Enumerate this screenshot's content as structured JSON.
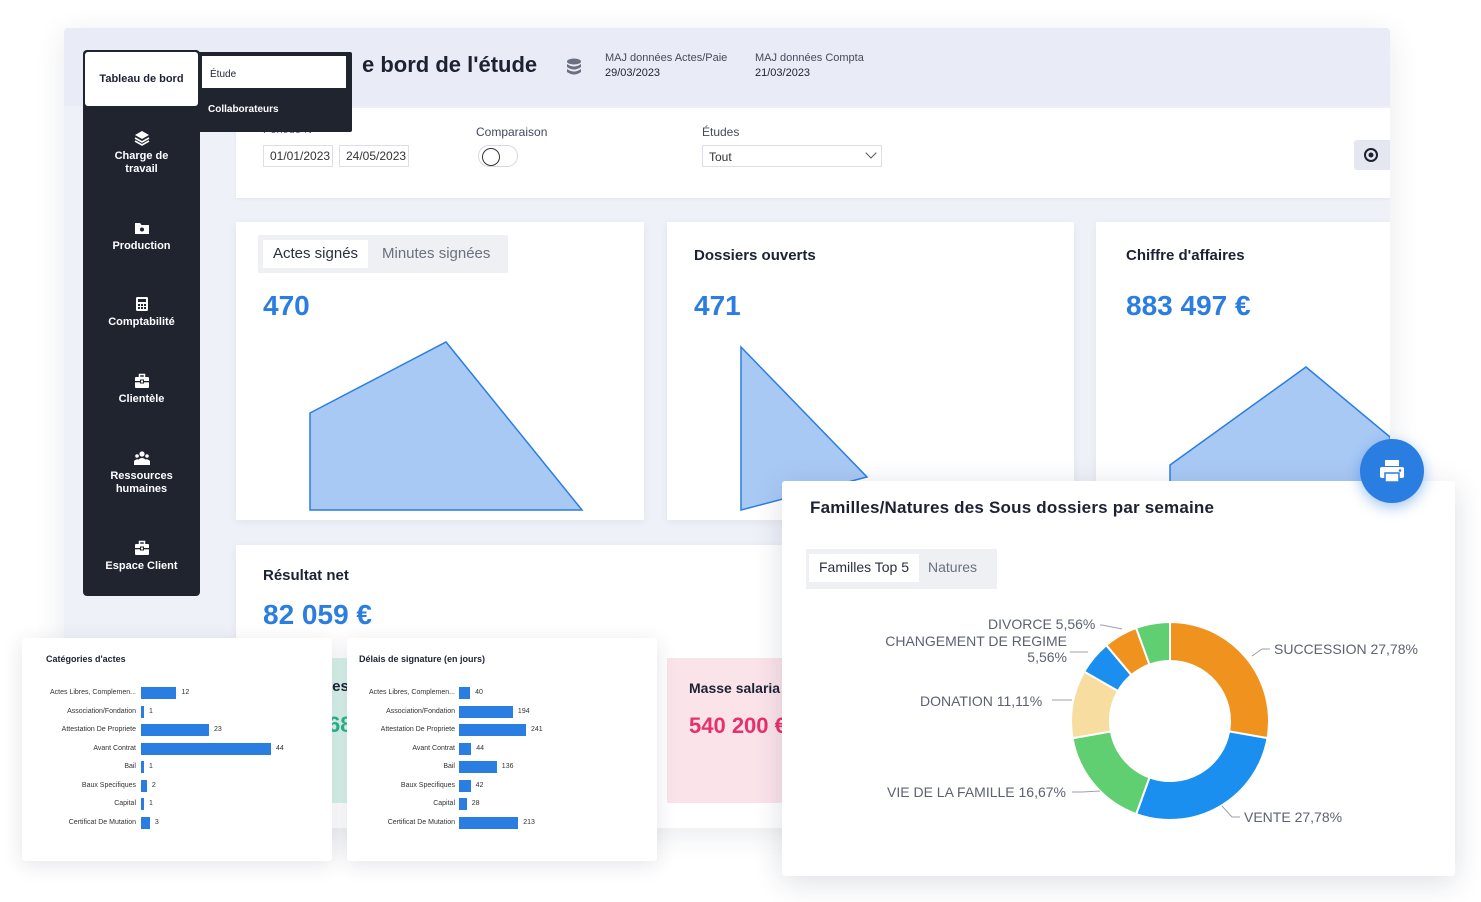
{
  "header": {
    "title": "e bord de l'étude",
    "maj_actes_label": "MAJ données Actes/Paie",
    "maj_actes_date": "29/03/2023",
    "maj_compta_label": "MAJ données Compta",
    "maj_compta_date": "21/03/2023"
  },
  "sidebar": {
    "home_label": "Tableau de bord",
    "items": [
      {
        "label": "Charge de travail",
        "icon": "layers-icon"
      },
      {
        "label": "Production",
        "icon": "folder-gear-icon"
      },
      {
        "label": "Comptabilité",
        "icon": "calculator-icon"
      },
      {
        "label": "Clientèle",
        "icon": "briefcase-icon"
      },
      {
        "label": "Ressources humaines",
        "icon": "people-icon"
      },
      {
        "label": "Espace Client",
        "icon": "briefcase-icon"
      }
    ]
  },
  "submenu": {
    "active": "Étude",
    "other": "Collaborateurs"
  },
  "filters": {
    "periode_label": "Période N",
    "date_start": "01/01/2023",
    "date_end": "24/05/2023",
    "comparaison_label": "Comparaison",
    "etudes_label": "Études",
    "etudes_value": "Tout"
  },
  "cards": {
    "actes": {
      "tab1": "Actes signés",
      "tab2": "Minutes signées",
      "value": "470"
    },
    "dossiers": {
      "title": "Dossiers ouverts",
      "value": "471"
    },
    "ca": {
      "title": "Chiffre d'affaires",
      "value": "883 497 €"
    },
    "resultat": {
      "title": "Résultat net",
      "value": "82 059 €"
    },
    "partial_teal": {
      "title": "les",
      "value": "68"
    },
    "masse": {
      "title": "Masse salaria",
      "value": "540 200 €"
    }
  },
  "categories": {
    "title": "Catégories d'actes",
    "items": [
      {
        "label": "Actes Libres, Complemen...",
        "value": 12
      },
      {
        "label": "Association/Fondation",
        "value": 1
      },
      {
        "label": "Attestation De Propriete",
        "value": 23
      },
      {
        "label": "Avant Contrat",
        "value": 44
      },
      {
        "label": "Bail",
        "value": 1
      },
      {
        "label": "Baux Specifiques",
        "value": 2
      },
      {
        "label": "Capital",
        "value": 1
      },
      {
        "label": "Certificat De Mutation",
        "value": 3
      }
    ]
  },
  "delais": {
    "title": "Délais de signature (en jours)",
    "items": [
      {
        "label": "Actes Libres, Complemen...",
        "value": 40
      },
      {
        "label": "Association/Fondation",
        "value": 194
      },
      {
        "label": "Attestation De Propriete",
        "value": 241
      },
      {
        "label": "Avant Contrat",
        "value": 44
      },
      {
        "label": "Bail",
        "value": 136
      },
      {
        "label": "Baux Specifiques",
        "value": 42
      },
      {
        "label": "Capital",
        "value": 28
      },
      {
        "label": "Certificat De Mutation",
        "value": 213
      }
    ]
  },
  "donut": {
    "title": "Familles/Natures des Sous dossiers par semaine",
    "tab1": "Familles Top 5",
    "tab2": "Natures",
    "slices": [
      {
        "label": "SUCCESSION 27,78%",
        "value": 27.78,
        "color": "#f0921e"
      },
      {
        "label": "VENTE 27,78%",
        "value": 27.78,
        "color": "#1a8ff0"
      },
      {
        "label": "VIE DE LA FAMILLE 16,67%",
        "value": 16.67,
        "color": "#5fcf72"
      },
      {
        "label": "DONATION 11,11%",
        "value": 11.11,
        "color": "#f7dda0"
      },
      {
        "label_line1": "CHANGEMENT DE REGIME",
        "label_line2": "5,56%",
        "value": 5.56,
        "color": "#1a8ff0"
      },
      {
        "label": "DIVORCE 5,56%",
        "value": 5.56,
        "color": "#f0921e"
      },
      {
        "value": 5.56,
        "color": "#5fcf72"
      }
    ]
  },
  "colors": {
    "accent": "#2a7de1",
    "sidebar": "#1f242f",
    "pink": "#e8306a",
    "teal": "#2ab68a"
  }
}
